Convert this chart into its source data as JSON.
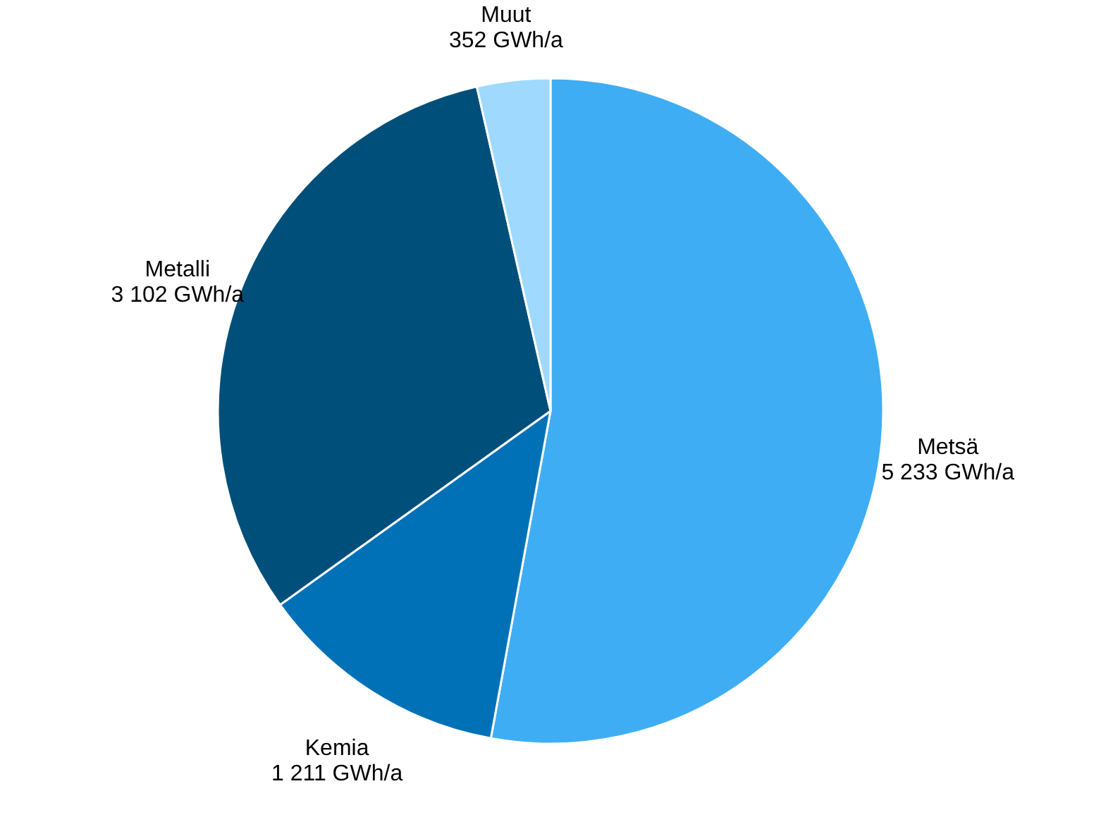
{
  "chart_data": {
    "type": "pie",
    "categories": [
      "Metsä",
      "Kemia",
      "Metalli",
      "Muut"
    ],
    "values": [
      5233,
      1211,
      3102,
      352
    ],
    "value_labels": [
      "5 233 GWh/a",
      "1 211 GWh/a",
      "3 102 GWh/a",
      "352 GWh/a"
    ],
    "colors": [
      "#3fadf3",
      "#0071b7",
      "#004f7a",
      "#9fdafe"
    ]
  }
}
